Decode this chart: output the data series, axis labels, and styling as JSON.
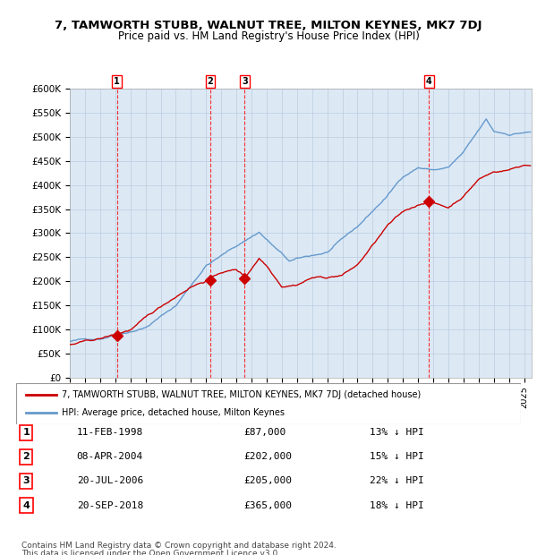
{
  "title": "7, TAMWORTH STUBB, WALNUT TREE, MILTON KEYNES, MK7 7DJ",
  "subtitle": "Price paid vs. HM Land Registry's House Price Index (HPI)",
  "legend_line1": "7, TAMWORTH STUBB, WALNUT TREE, MILTON KEYNES, MK7 7DJ (detached house)",
  "legend_line2": "HPI: Average price, detached house, Milton Keynes",
  "footer1": "Contains HM Land Registry data © Crown copyright and database right 2024.",
  "footer2": "This data is licensed under the Open Government Licence v3.0.",
  "sales": [
    {
      "num": 1,
      "date": "11-FEB-1998",
      "year": 1998.12,
      "price": 87000,
      "pct": "13% ↓ HPI"
    },
    {
      "num": 2,
      "date": "08-APR-2004",
      "year": 2004.27,
      "price": 202000,
      "pct": "15% ↓ HPI"
    },
    {
      "num": 3,
      "date": "20-JUL-2006",
      "year": 2006.55,
      "price": 205000,
      "pct": "22% ↓ HPI"
    },
    {
      "num": 4,
      "date": "20-SEP-2018",
      "year": 2018.72,
      "price": 365000,
      "pct": "18% ↓ HPI"
    }
  ],
  "hpi_color": "#6699cc",
  "price_color": "#cc0000",
  "bg_color": "#dce9f5",
  "plot_bg": "#ffffff",
  "grid_color": "#bbccdd",
  "ylim": [
    0,
    600000
  ],
  "yticks": [
    0,
    50000,
    100000,
    150000,
    200000,
    250000,
    300000,
    350000,
    400000,
    450000,
    500000,
    550000,
    600000
  ],
  "year_start": 1995,
  "year_end": 2025
}
